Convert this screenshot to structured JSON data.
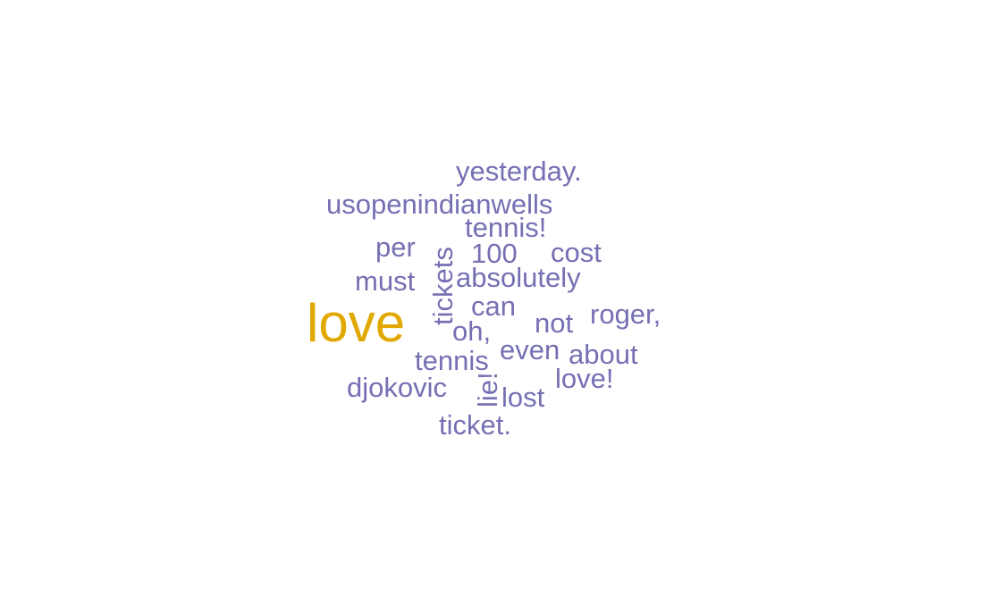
{
  "chart_data": {
    "type": "wordcloud",
    "words": [
      {
        "text": "love",
        "weight": 4,
        "color": "#e0a800",
        "rotated": false
      },
      {
        "text": "yesterday.",
        "weight": 1,
        "color": "#7570b3",
        "rotated": false
      },
      {
        "text": "usopenindianwells",
        "weight": 1,
        "color": "#7570b3",
        "rotated": false
      },
      {
        "text": "tennis!",
        "weight": 1,
        "color": "#7570b3",
        "rotated": false
      },
      {
        "text": "per",
        "weight": 1,
        "color": "#7570b3",
        "rotated": false
      },
      {
        "text": "100",
        "weight": 1,
        "color": "#7570b3",
        "rotated": false
      },
      {
        "text": "cost",
        "weight": 1,
        "color": "#7570b3",
        "rotated": false
      },
      {
        "text": "tickets",
        "weight": 1,
        "color": "#7570b3",
        "rotated": true
      },
      {
        "text": "must",
        "weight": 1,
        "color": "#7570b3",
        "rotated": false
      },
      {
        "text": "absolutely",
        "weight": 1,
        "color": "#7570b3",
        "rotated": false
      },
      {
        "text": "can",
        "weight": 1,
        "color": "#7570b3",
        "rotated": false
      },
      {
        "text": "not",
        "weight": 1,
        "color": "#7570b3",
        "rotated": false
      },
      {
        "text": "roger,",
        "weight": 1,
        "color": "#7570b3",
        "rotated": false
      },
      {
        "text": "oh,",
        "weight": 1,
        "color": "#7570b3",
        "rotated": false
      },
      {
        "text": "even",
        "weight": 1,
        "color": "#7570b3",
        "rotated": false
      },
      {
        "text": "about",
        "weight": 1,
        "color": "#7570b3",
        "rotated": false
      },
      {
        "text": "tennis",
        "weight": 1,
        "color": "#7570b3",
        "rotated": false
      },
      {
        "text": "love!",
        "weight": 1,
        "color": "#7570b3",
        "rotated": false
      },
      {
        "text": "djokovic",
        "weight": 1,
        "color": "#7570b3",
        "rotated": false
      },
      {
        "text": "lie!",
        "weight": 1,
        "color": "#7570b3",
        "rotated": true
      },
      {
        "text": "lost",
        "weight": 1,
        "color": "#7570b3",
        "rotated": false
      },
      {
        "text": "ticket.",
        "weight": 1,
        "color": "#7570b3",
        "rotated": false
      }
    ]
  }
}
